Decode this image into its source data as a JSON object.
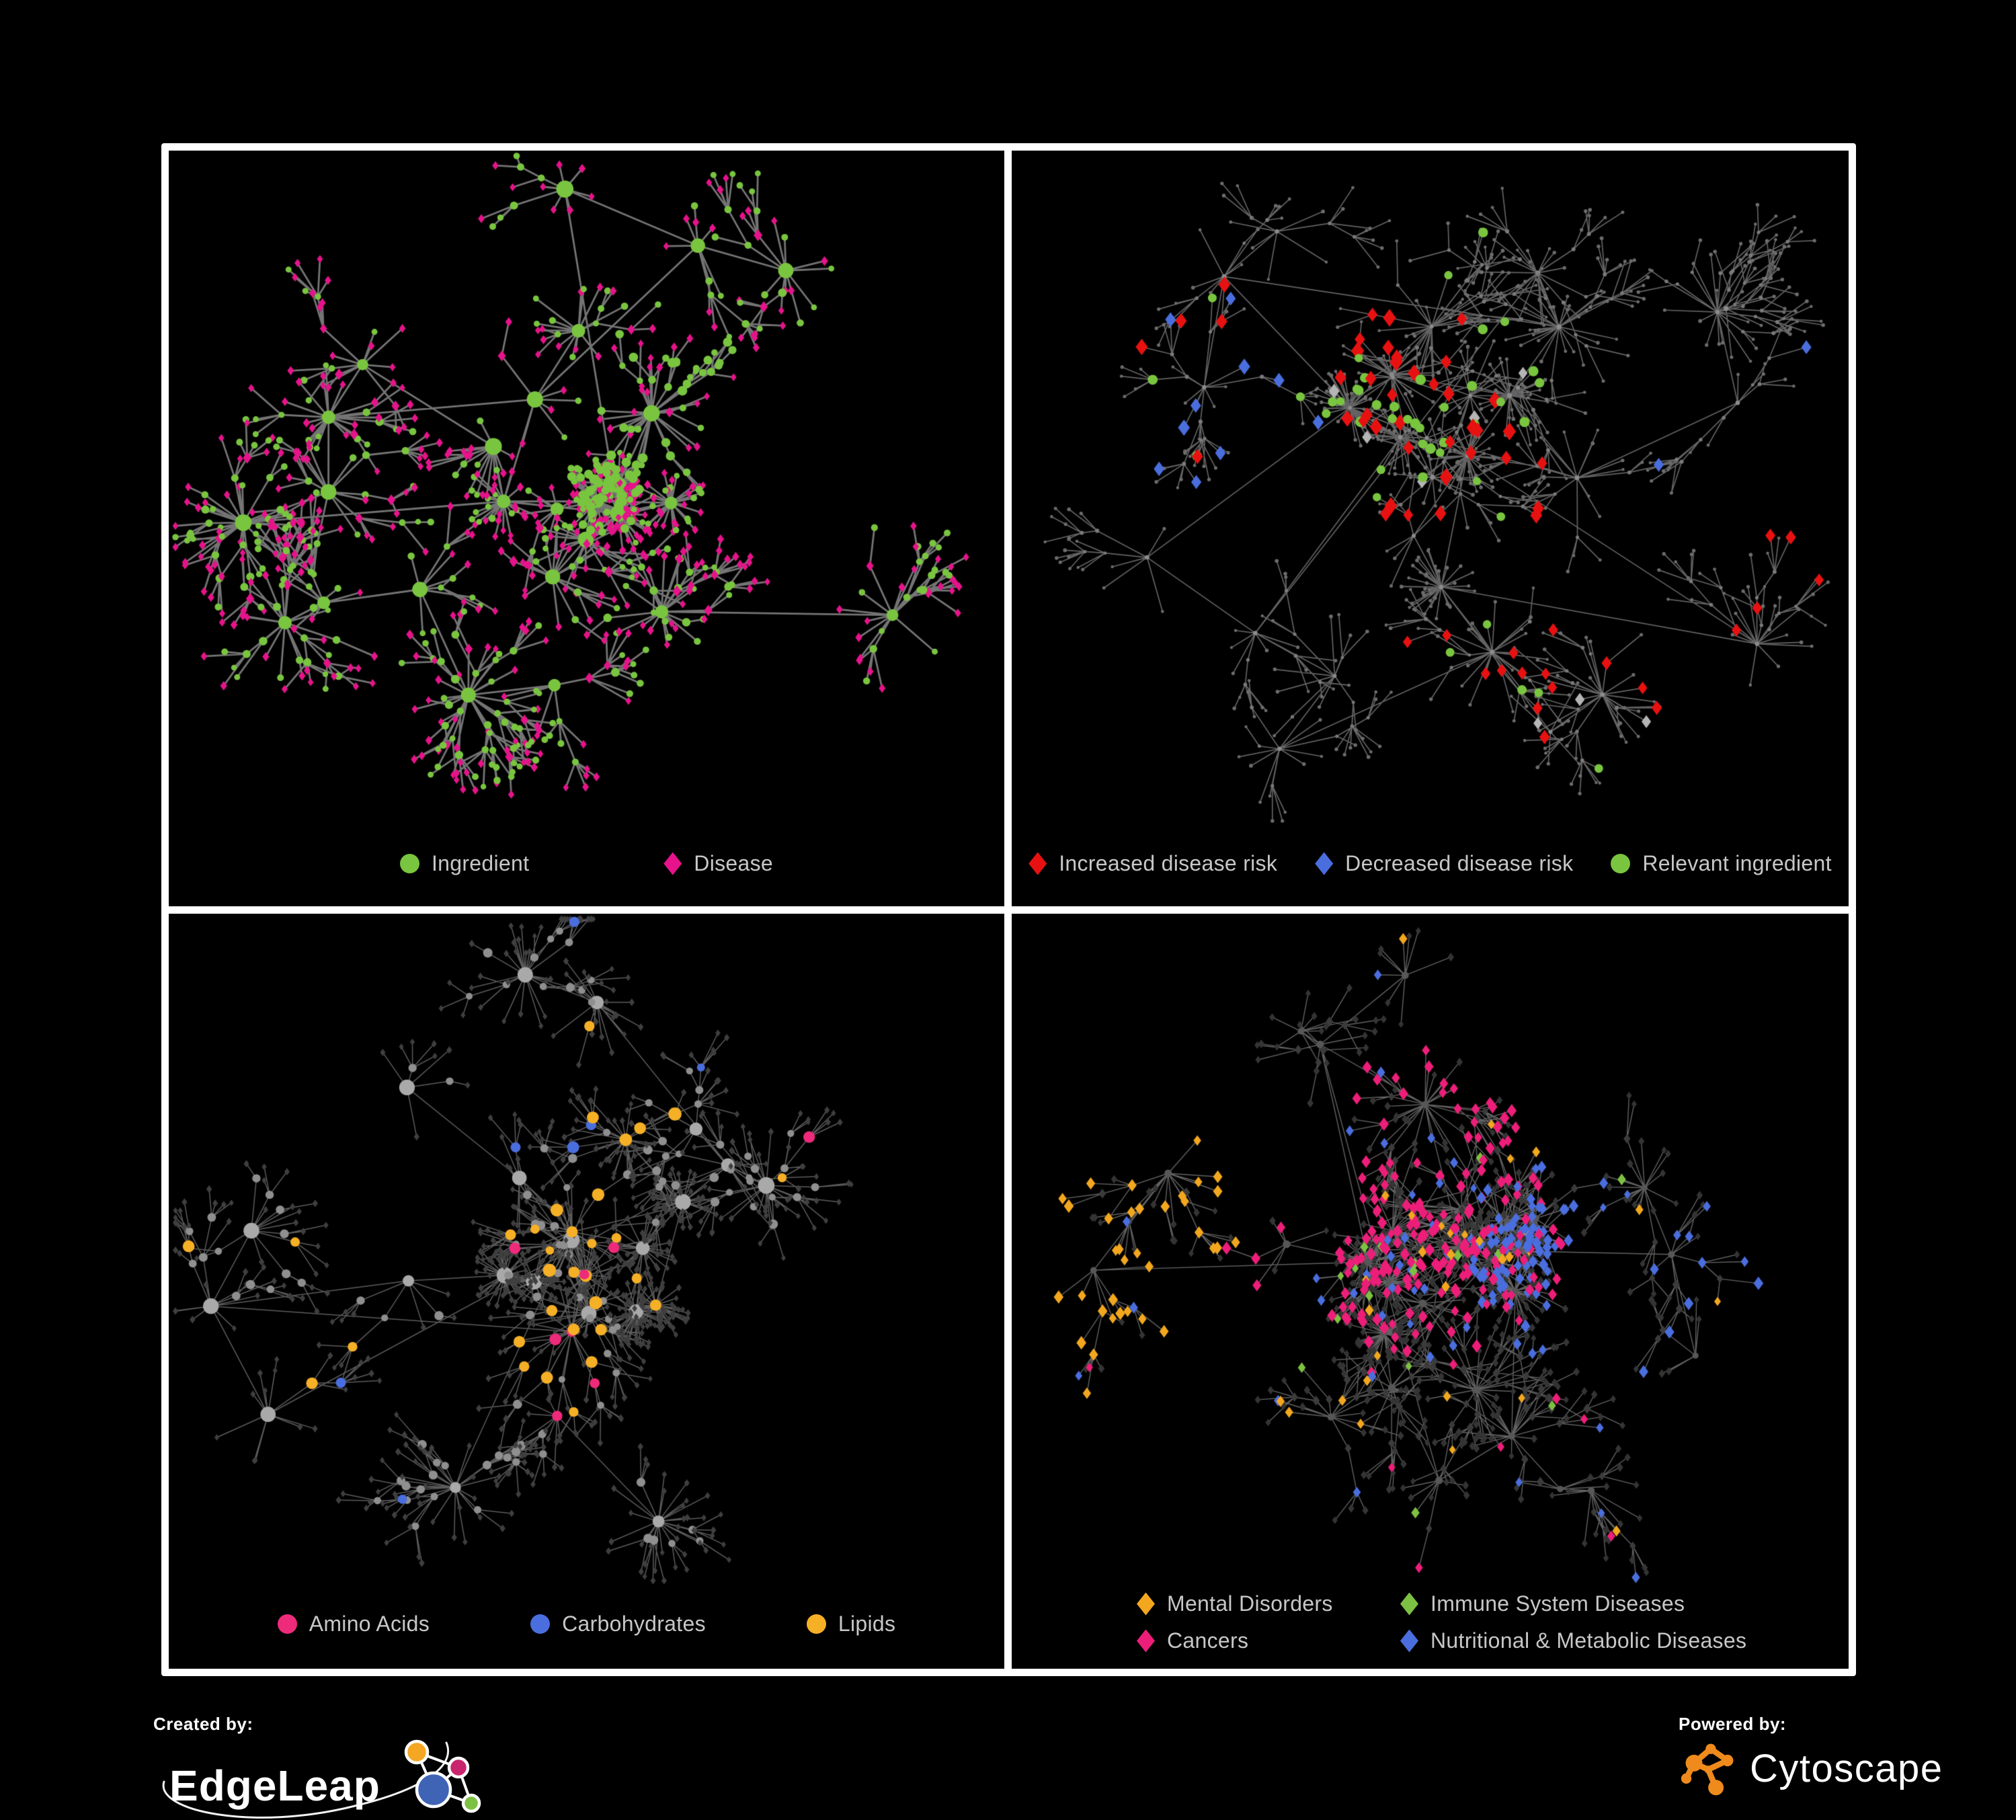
{
  "page": {
    "background": "#000000",
    "panel_background": "#000000",
    "panel_border": "#ffffff"
  },
  "branding": {
    "created_by": "Created by:",
    "creator": "EdgeLeap",
    "powered_by": "Powered by:",
    "engine": "Cytoscape",
    "edgeleap_colors": {
      "orange": "#f5a623",
      "magenta": "#c9256e",
      "blue": "#3f63b5",
      "green": "#7dc142"
    },
    "cytoscape_orange": "#ef8a1c"
  },
  "panels": [
    {
      "id": "ingredient-disease-network",
      "legend": [
        {
          "label": "Ingredient",
          "shape": "circle",
          "color": "#79c53f"
        },
        {
          "label": "Disease",
          "shape": "diamond",
          "color": "#e6138b"
        }
      ],
      "network": {
        "seed": 11,
        "hubs": 26,
        "core": 5,
        "branchP": 0.3,
        "deg": [
          4,
          24
        ],
        "coreDeg": [
          26,
          26
        ],
        "dist": [
          26,
          58
        ],
        "coreDist": [
          16,
          42
        ],
        "edge": {
          "color": "#7a7a7a",
          "w": 2.8,
          "a": 0.95
        },
        "style": {
          "hub": [
            {
              "p": 1,
              "shape": "circle",
              "color": "#79c53f",
              "r": [
                8,
                13
              ]
            }
          ],
          "mid": [
            {
              "p": 0.22,
              "shape": "diamond",
              "color": "#e6138b",
              "r": [
                6.5,
                8
              ]
            },
            {
              "p": 1,
              "shape": "circle",
              "color": "#79c53f",
              "r": [
                4.5,
                6.5
              ]
            }
          ],
          "leaf": [
            {
              "p": 0.7,
              "shape": "diamond",
              "color": "#e6138b",
              "r": [
                5.2,
                6.4
              ]
            },
            {
              "p": 1,
              "shape": "circle",
              "color": "#79c53f",
              "r": [
                4.2,
                5.4
              ]
            }
          ]
        },
        "themes": [
          {
            "region": [
              0.44,
              0.64,
              0.3,
              0.52
            ],
            "on": [
              "leaf",
              "mid"
            ],
            "picks": [
              {
                "p": 0.45,
                "shape": "circle",
                "color": "#79c53f",
                "r": [
                  5.5,
                  7.5
                ]
              }
            ]
          }
        ]
      }
    },
    {
      "id": "disease-risk-network",
      "legend": [
        {
          "label": "Increased disease risk",
          "shape": "diamond",
          "color": "#e81111"
        },
        {
          "label": "Decreased disease risk",
          "shape": "diamond",
          "color": "#4a6ede"
        },
        {
          "label": "Relevant ingredient",
          "shape": "circle",
          "color": "#79c53f"
        }
      ],
      "network": {
        "seed": 23,
        "hubs": 30,
        "core": 5,
        "branchP": 0.34,
        "deg": [
          4,
          26
        ],
        "coreDeg": [
          24,
          30
        ],
        "dist": [
          28,
          62
        ],
        "coreDist": [
          16,
          44
        ],
        "edge": {
          "color": "#6e6e6e",
          "w": 1.7,
          "a": 0.9
        },
        "style": {
          "hub": [
            {
              "p": 1,
              "shape": "circle",
              "color": "#8c8c8c",
              "r": [
                2.8,
                3.8
              ]
            }
          ],
          "mid": [
            {
              "p": 1,
              "shape": "circle",
              "color": "#7a7a7a",
              "r": [
                2.4,
                3.1
              ]
            }
          ],
          "leaf": [
            {
              "p": 1,
              "shape": "circle",
              "color": "#6c6c6c",
              "r": [
                2.2,
                2.9
              ]
            }
          ]
        },
        "themes": [
          {
            "region": [
              0.04,
              0.24,
              0.22,
              0.52
            ],
            "picks": [
              {
                "p": 0.16,
                "shape": "diamond",
                "color": "#4a6ede",
                "r": [
                  9,
                  11
                ]
              },
              {
                "p": 0.1,
                "shape": "diamond",
                "color": "#e81111",
                "r": [
                  9,
                  11
                ]
              },
              {
                "p": 0.05,
                "shape": "diamond",
                "color": "#b5b5b5",
                "r": [
                  8,
                  10
                ]
              },
              {
                "p": 0.08,
                "shape": "circle",
                "color": "#79c53f",
                "r": [
                  6,
                  8
                ]
              }
            ]
          },
          {
            "region": [
              0.3,
              0.64,
              0.2,
              0.62
            ],
            "picks": [
              {
                "p": 0.09,
                "shape": "diamond",
                "color": "#e81111",
                "r": [
                  9,
                  12
                ]
              },
              {
                "p": 0.11,
                "shape": "circle",
                "color": "#79c53f",
                "r": [
                  6,
                  8
                ]
              },
              {
                "p": 0.025,
                "shape": "diamond",
                "color": "#b5b5b5",
                "r": [
                  8,
                  10
                ]
              }
            ]
          },
          {
            "region": [
              0.56,
              0.78,
              0.55,
              0.84
            ],
            "picks": [
              {
                "p": 0.09,
                "shape": "diamond",
                "color": "#e81111",
                "r": [
                  8,
                  10
                ]
              },
              {
                "p": 0.07,
                "shape": "circle",
                "color": "#79c53f",
                "r": [
                  6,
                  7
                ]
              },
              {
                "p": 0.04,
                "shape": "diamond",
                "color": "#b5b5b5",
                "r": [
                  8,
                  9
                ]
              }
            ]
          },
          {
            "region": [
              0.76,
              1,
              0.25,
              0.48
            ],
            "picks": [
              {
                "p": 0.06,
                "shape": "diamond",
                "color": "#4a6ede",
                "r": [
                  9,
                  10
                ]
              }
            ]
          },
          {
            "region": [
              0.55,
              0.9,
              0.72,
              0.97
            ],
            "picks": [
              {
                "p": 0.05,
                "shape": "diamond",
                "color": "#e81111",
                "r": [
                  8,
                  10
                ]
              }
            ]
          }
        ]
      }
    },
    {
      "id": "nutrient-class-network",
      "legend": [
        {
          "label": "Amino Acids",
          "shape": "circle",
          "color": "#ee2a7b"
        },
        {
          "label": "Carbohydrates",
          "shape": "circle",
          "color": "#4a6ede"
        },
        {
          "label": "Lipids",
          "shape": "circle",
          "color": "#f6b026"
        }
      ],
      "network": {
        "seed": 5,
        "hubs": 26,
        "core": 6,
        "branchP": 0.3,
        "deg": [
          4,
          24
        ],
        "coreDeg": [
          30,
          28
        ],
        "dist": [
          26,
          58
        ],
        "coreDist": [
          14,
          40
        ],
        "edge": {
          "color": "#9a9a9a",
          "w": 1.5,
          "a": 0.6
        },
        "style": {
          "hub": [
            {
              "p": 1,
              "shape": "circle",
              "color": "#a9a9a9",
              "r": [
                8,
                13
              ]
            }
          ],
          "mid": [
            {
              "p": 1,
              "shape": "circle",
              "color": "#8f8f8f",
              "r": [
                5,
                7
              ]
            }
          ],
          "leaf": [
            {
              "p": 1,
              "shape": "diamond",
              "color": "#3f3f3f",
              "r": [
                4.2,
                5.2
              ]
            }
          ]
        },
        "themes": [
          {
            "region": [
              0.34,
              0.58,
              0.16,
              0.44
            ],
            "on": [
              "mid",
              "hub"
            ],
            "picks": [
              {
                "p": 0.5,
                "shape": "circle",
                "color": "#f6b026",
                "r": [
                  7,
                  10
                ]
              },
              {
                "p": 0.22,
                "shape": "circle",
                "color": "#4a6ede",
                "r": [
                  7,
                  9
                ]
              }
            ]
          },
          {
            "region": [
              0.2,
              0.6,
              0.44,
              0.72
            ],
            "on": [
              "mid",
              "hub"
            ],
            "picks": [
              {
                "p": 0.3,
                "shape": "circle",
                "color": "#f6b026",
                "r": [
                  7,
                  10
                ]
              }
            ]
          },
          {
            "region": [
              0.55,
              0.85,
              0.6,
              0.88
            ],
            "on": [
              "mid",
              "hub"
            ],
            "picks": [
              {
                "p": 0.28,
                "shape": "circle",
                "color": "#f6b026",
                "r": [
                  7,
                  10
                ]
              },
              {
                "p": 0.07,
                "shape": "circle",
                "color": "#4a6ede",
                "r": [
                  7,
                  8
                ]
              }
            ]
          },
          {
            "region": [
              0,
              1,
              0,
              1
            ],
            "on": [
              "mid",
              "hub"
            ],
            "picks": [
              {
                "p": 0.05,
                "shape": "circle",
                "color": "#ee2a7b",
                "r": [
                  7,
                  9
                ]
              },
              {
                "p": 0.06,
                "shape": "circle",
                "color": "#f6b026",
                "r": [
                  6,
                  9
                ]
              },
              {
                "p": 0.025,
                "shape": "circle",
                "color": "#4a6ede",
                "r": [
                  6,
                  8
                ]
              }
            ]
          }
        ]
      }
    },
    {
      "id": "disease-class-network",
      "legend": [
        {
          "label": "Mental Disorders",
          "shape": "diamond",
          "color": "#f2a71f"
        },
        {
          "label": "Immune System Diseases",
          "shape": "diamond",
          "color": "#7dc142"
        },
        {
          "label": "Cancers",
          "shape": "diamond",
          "color": "#ed1e79"
        },
        {
          "label": "Nutritional & Metabolic Diseases",
          "shape": "diamond",
          "color": "#4a6ede"
        }
      ],
      "network": {
        "seed": 42,
        "hubs": 30,
        "core": 6,
        "branchP": 0.34,
        "deg": [
          4,
          26
        ],
        "coreDeg": [
          26,
          30
        ],
        "dist": [
          26,
          58
        ],
        "coreDist": [
          15,
          42
        ],
        "edge": {
          "color": "#7a7a7a",
          "w": 1.4,
          "a": 0.8
        },
        "style": {
          "hub": [
            {
              "p": 1,
              "shape": "circle",
              "color": "#575757",
              "r": [
                4.5,
                6
              ]
            }
          ],
          "mid": [
            {
              "p": 1,
              "shape": "diamond",
              "color": "#3b3b3b",
              "r": [
                5.5,
                7
              ]
            }
          ],
          "leaf": [
            {
              "p": 1,
              "shape": "diamond",
              "color": "#343434",
              "r": [
                4.8,
                6
              ]
            }
          ]
        },
        "themes": [
          {
            "region": [
              0.02,
              0.28,
              0.14,
              0.55
            ],
            "picks": [
              {
                "p": 0.55,
                "shape": "diamond",
                "color": "#f2a71f",
                "r": [
                  7,
                  9
                ]
              }
            ]
          },
          {
            "region": [
              0.32,
              0.6,
              0.22,
              0.6
            ],
            "picks": [
              {
                "p": 0.3,
                "shape": "diamond",
                "color": "#ed1e79",
                "r": [
                  7,
                  9
                ]
              },
              {
                "p": 0.04,
                "shape": "diamond",
                "color": "#4a6ede",
                "r": [
                  7,
                  8
                ]
              },
              {
                "p": 0.03,
                "shape": "diamond",
                "color": "#7dc142",
                "r": [
                  7,
                  8
                ]
              }
            ]
          },
          {
            "region": [
              0.58,
              0.8,
              0.42,
              0.68
            ],
            "picks": [
              {
                "p": 0.45,
                "shape": "diamond",
                "color": "#4a6ede",
                "r": [
                  7,
                  9
                ]
              }
            ]
          },
          {
            "region": [
              0.8,
              1,
              0.08,
              0.32
            ],
            "picks": [
              {
                "p": 0.28,
                "shape": "diamond",
                "color": "#4a6ede",
                "r": [
                  7,
                  8
                ]
              },
              {
                "p": 0.16,
                "shape": "diamond",
                "color": "#ed1e79",
                "r": [
                  7,
                  8
                ]
              }
            ]
          },
          {
            "region": [
              0.45,
              0.8,
              0,
              0.25
            ],
            "picks": [
              {
                "p": 0.18,
                "shape": "diamond",
                "color": "#4a6ede",
                "r": [
                  6,
                  8
                ]
              }
            ]
          },
          {
            "region": [
              0,
              1,
              0,
              1
            ],
            "picks": [
              {
                "p": 0.05,
                "shape": "diamond",
                "color": "#4a6ede",
                "r": [
                  6,
                  8
                ]
              },
              {
                "p": 0.035,
                "shape": "diamond",
                "color": "#f2a71f",
                "r": [
                  6,
                  8
                ]
              },
              {
                "p": 0.02,
                "shape": "diamond",
                "color": "#7dc142",
                "r": [
                  6,
                  8
                ]
              },
              {
                "p": 0.035,
                "shape": "diamond",
                "color": "#ed1e79",
                "r": [
                  6,
                  8
                ]
              }
            ]
          }
        ]
      }
    }
  ]
}
